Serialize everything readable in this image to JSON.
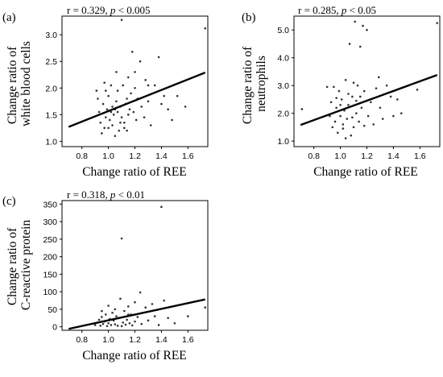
{
  "chart_data": [
    {
      "type": "scatter",
      "panel_label": "(a)",
      "annotation": {
        "prefix": "r = 0.329, ",
        "p": "p",
        "suffix": " < 0.005"
      },
      "xlabel": "Change ratio of REE",
      "ylabel_lines": [
        "Change ratio of",
        "white blood cells"
      ],
      "xlim": [
        0.65,
        1.75
      ],
      "ylim": [
        0.9,
        3.35
      ],
      "xticks": [
        0.8,
        1.0,
        1.2,
        1.4,
        1.6
      ],
      "xtick_labels": [
        "0.8",
        "1.0",
        "1.2",
        "1.4",
        "1.6"
      ],
      "yticks": [
        1.0,
        1.5,
        2.0,
        2.5,
        3.0
      ],
      "ytick_labels": [
        "1.0",
        "1.5",
        "2.0",
        "2.5",
        "3.0"
      ],
      "regression_line": {
        "x": [
          0.7,
          1.73
        ],
        "y": [
          1.27,
          2.29
        ]
      },
      "points": [
        [
          0.91,
          1.95
        ],
        [
          0.93,
          1.55
        ],
        [
          0.94,
          1.35
        ],
        [
          0.95,
          1.15
        ],
        [
          0.96,
          1.7
        ],
        [
          0.97,
          2.1
        ],
        [
          0.98,
          1.45
        ],
        [
          0.99,
          1.6
        ],
        [
          1.0,
          1.25
        ],
        [
          1.0,
          1.85
        ],
        [
          1.01,
          1.4
        ],
        [
          1.02,
          2.05
        ],
        [
          1.03,
          1.65
        ],
        [
          1.03,
          1.3
        ],
        [
          1.04,
          1.5
        ],
        [
          1.05,
          1.1
        ],
        [
          1.06,
          1.75
        ],
        [
          1.06,
          2.3
        ],
        [
          1.07,
          1.55
        ],
        [
          1.08,
          1.2
        ],
        [
          1.09,
          1.65
        ],
        [
          1.1,
          3.28
        ],
        [
          1.1,
          1.45
        ],
        [
          1.11,
          2.05
        ],
        [
          1.12,
          1.35
        ],
        [
          1.13,
          1.7
        ],
        [
          1.14,
          1.2
        ],
        [
          1.15,
          2.2
        ],
        [
          1.16,
          1.6
        ],
        [
          1.17,
          1.9
        ],
        [
          1.18,
          2.68
        ],
        [
          1.19,
          1.55
        ],
        [
          1.2,
          2.0
        ],
        [
          1.21,
          1.4
        ],
        [
          1.22,
          1.8
        ],
        [
          1.24,
          2.5
        ],
        [
          1.25,
          1.65
        ],
        [
          1.28,
          2.15
        ],
        [
          1.3,
          1.75
        ],
        [
          1.32,
          1.3
        ],
        [
          1.35,
          2.05
        ],
        [
          1.38,
          2.58
        ],
        [
          1.4,
          1.7
        ],
        [
          1.42,
          1.85
        ],
        [
          1.45,
          1.6
        ],
        [
          1.48,
          1.4
        ],
        [
          1.52,
          1.85
        ],
        [
          1.58,
          1.65
        ],
        [
          1.73,
          3.12
        ],
        [
          0.92,
          1.8
        ],
        [
          0.98,
          1.95
        ],
        [
          1.02,
          1.55
        ],
        [
          1.07,
          1.95
        ],
        [
          1.12,
          1.25
        ],
        [
          1.15,
          1.5
        ],
        [
          1.2,
          2.3
        ],
        [
          1.27,
          1.45
        ],
        [
          1.3,
          2.05
        ],
        [
          0.97,
          1.25
        ],
        [
          1.05,
          1.6
        ],
        [
          1.09,
          1.35
        ],
        [
          1.14,
          1.8
        ]
      ]
    },
    {
      "type": "scatter",
      "panel_label": "(b)",
      "annotation": {
        "prefix": "r = 0.285, ",
        "p": "p",
        "suffix": " < 0.05"
      },
      "xlabel": "Change ratio of REE",
      "ylabel_lines": [
        "Change ratio of",
        "neutrophils"
      ],
      "xlim": [
        0.65,
        1.75
      ],
      "ylim": [
        0.8,
        5.5
      ],
      "xticks": [
        0.8,
        1.0,
        1.2,
        1.4,
        1.6
      ],
      "xtick_labels": [
        "0.8",
        "1.0",
        "1.2",
        "1.4",
        "1.6"
      ],
      "yticks": [
        1.0,
        2.0,
        3.0,
        4.0,
        5.0
      ],
      "ytick_labels": [
        "1.0",
        "2.0",
        "3.0",
        "4.0",
        "5.0"
      ],
      "regression_line": {
        "x": [
          0.7,
          1.73
        ],
        "y": [
          1.58,
          3.38
        ]
      },
      "points": [
        [
          0.71,
          2.15
        ],
        [
          0.9,
          2.95
        ],
        [
          0.92,
          1.9
        ],
        [
          0.93,
          2.4
        ],
        [
          0.94,
          1.5
        ],
        [
          0.95,
          2.95
        ],
        [
          0.96,
          1.7
        ],
        [
          0.97,
          2.2
        ],
        [
          0.98,
          1.3
        ],
        [
          0.99,
          2.8
        ],
        [
          1.0,
          1.9
        ],
        [
          1.01,
          2.5
        ],
        [
          1.02,
          1.6
        ],
        [
          1.03,
          2.1
        ],
        [
          1.04,
          3.2
        ],
        [
          1.05,
          1.8
        ],
        [
          1.06,
          2.3
        ],
        [
          1.07,
          4.5
        ],
        [
          1.08,
          1.2
        ],
        [
          1.09,
          2.6
        ],
        [
          1.1,
          1.5
        ],
        [
          1.11,
          5.3
        ],
        [
          1.12,
          2.0
        ],
        [
          1.13,
          3.0
        ],
        [
          1.14,
          1.7
        ],
        [
          1.15,
          4.4
        ],
        [
          1.16,
          2.2
        ],
        [
          1.17,
          5.15
        ],
        [
          1.18,
          2.8
        ],
        [
          1.2,
          5.0
        ],
        [
          1.21,
          1.9
        ],
        [
          1.23,
          2.4
        ],
        [
          1.25,
          1.6
        ],
        [
          1.27,
          2.9
        ],
        [
          1.29,
          3.3
        ],
        [
          1.3,
          2.2
        ],
        [
          1.32,
          1.8
        ],
        [
          1.35,
          3.0
        ],
        [
          1.38,
          2.6
        ],
        [
          1.4,
          1.9
        ],
        [
          1.43,
          2.5
        ],
        [
          1.46,
          2.0
        ],
        [
          1.58,
          2.85
        ],
        [
          1.73,
          5.25
        ],
        [
          1.0,
          2.3
        ],
        [
          1.02,
          1.45
        ],
        [
          1.06,
          2.7
        ],
        [
          1.09,
          1.85
        ],
        [
          1.12,
          2.45
        ],
        [
          1.04,
          1.1
        ],
        [
          1.15,
          2.6
        ],
        [
          0.97,
          2.55
        ],
        [
          1.1,
          3.1
        ],
        [
          1.18,
          1.55
        ]
      ]
    },
    {
      "type": "scatter",
      "panel_label": "(c)",
      "annotation": {
        "prefix": "r = 0.318, ",
        "p": "p",
        "suffix": " < 0.01"
      },
      "xlabel": "Change ratio of REE",
      "ylabel_lines": [
        "Change ratio of",
        "C-reactive protein"
      ],
      "xlim": [
        0.65,
        1.75
      ],
      "ylim": [
        -10,
        360
      ],
      "xticks": [
        0.8,
        1.0,
        1.2,
        1.4,
        1.6
      ],
      "xtick_labels": [
        "0.8",
        "1.0",
        "1.2",
        "1.4",
        "1.6"
      ],
      "yticks": [
        0,
        50,
        100,
        150,
        200,
        250,
        300,
        350
      ],
      "ytick_labels": [
        "0",
        "50",
        "100",
        "150",
        "200",
        "250",
        "300",
        "350"
      ],
      "regression_line": {
        "x": [
          0.7,
          1.73
        ],
        "y": [
          -6,
          78
        ]
      },
      "points": [
        [
          0.9,
          5
        ],
        [
          0.92,
          12
        ],
        [
          0.93,
          20
        ],
        [
          0.94,
          3
        ],
        [
          0.95,
          28
        ],
        [
          0.96,
          8
        ],
        [
          0.97,
          15
        ],
        [
          0.98,
          35
        ],
        [
          0.99,
          2
        ],
        [
          1.0,
          10
        ],
        [
          1.01,
          22
        ],
        [
          1.02,
          5
        ],
        [
          1.03,
          40
        ],
        [
          1.04,
          18
        ],
        [
          1.05,
          7
        ],
        [
          1.06,
          30
        ],
        [
          1.07,
          3
        ],
        [
          1.08,
          25
        ],
        [
          1.09,
          80
        ],
        [
          1.1,
          252
        ],
        [
          1.11,
          12
        ],
        [
          1.12,
          45
        ],
        [
          1.13,
          6
        ],
        [
          1.14,
          20
        ],
        [
          1.15,
          58
        ],
        [
          1.16,
          10
        ],
        [
          1.17,
          35
        ],
        [
          1.18,
          4
        ],
        [
          1.2,
          15
        ],
        [
          1.22,
          28
        ],
        [
          1.24,
          98
        ],
        [
          1.25,
          8
        ],
        [
          1.28,
          55
        ],
        [
          1.3,
          18
        ],
        [
          1.33,
          65
        ],
        [
          1.35,
          30
        ],
        [
          1.38,
          5
        ],
        [
          1.4,
          342
        ],
        [
          1.42,
          75
        ],
        [
          1.45,
          25
        ],
        [
          1.5,
          10
        ],
        [
          1.6,
          30
        ],
        [
          1.73,
          55
        ],
        [
          1.0,
          60
        ],
        [
          1.05,
          50
        ],
        [
          1.1,
          2
        ],
        [
          0.95,
          45
        ],
        [
          1.15,
          35
        ],
        [
          1.2,
          70
        ]
      ]
    }
  ]
}
